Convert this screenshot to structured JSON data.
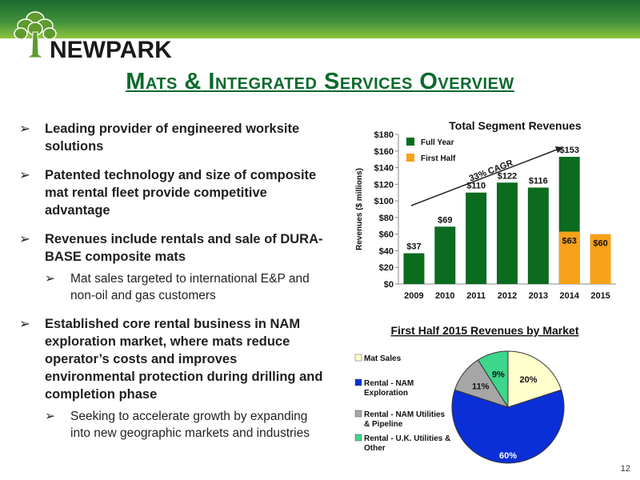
{
  "brand": {
    "name": "NEWPARK"
  },
  "title": "Mats & Integrated Services Overview",
  "bullets": [
    {
      "text": "Leading provider of engineered worksite solutions",
      "sub": []
    },
    {
      "text": "Patented technology and size of composite mat rental fleet provide competitive advantage",
      "sub": []
    },
    {
      "text": "Revenues include rentals and sale of DURA-BASE composite mats",
      "sub": [
        "Mat sales targeted to international E&P and non-oil and gas customers"
      ]
    },
    {
      "text": "Established core rental business in NAM exploration market, where mats reduce operator’s costs and improves environmental protection during drilling and completion phase",
      "sub": [
        "Seeking to accelerate growth by expanding into new geographic markets and industries"
      ]
    }
  ],
  "slide_number": "12",
  "colors": {
    "dark_green": "#0b6b1e",
    "orange": "#f7a11a",
    "title_green": "#0a6a2c"
  },
  "chart_data": [
    {
      "type": "bar",
      "title": "Total Segment Revenues",
      "ylabel": "Revenues ($ millions)",
      "xlabel": "",
      "ylim": [
        0,
        180
      ],
      "yticks": [
        0,
        20,
        40,
        60,
        80,
        100,
        120,
        140,
        160,
        180
      ],
      "ytick_labels": [
        "$0",
        "$20",
        "$40",
        "$60",
        "$80",
        "$100",
        "$120",
        "$140",
        "$160",
        "$180"
      ],
      "categories": [
        "2009",
        "2010",
        "2011",
        "2012",
        "2013",
        "2014",
        "2015"
      ],
      "series": [
        {
          "name": "Full Year",
          "color": "#0b6b1e",
          "values": [
            37,
            69,
            110,
            122,
            116,
            153,
            null
          ],
          "labels": [
            "$37",
            "$69",
            "$110",
            "$122",
            "$116",
            "$153",
            ""
          ]
        },
        {
          "name": "First Half",
          "color": "#f7a11a",
          "values": [
            null,
            null,
            null,
            null,
            null,
            63,
            60
          ],
          "labels": [
            "",
            "",
            "",
            "",
            "",
            "$63",
            "$60"
          ]
        }
      ],
      "legend": "top-left",
      "annotation": "33% CAGR",
      "grid": false
    },
    {
      "type": "pie",
      "title": "First Half 2015 Revenues by Market",
      "legend": "left",
      "slices": [
        {
          "label": "Mat Sales",
          "value": 20,
          "text": "20%",
          "color": "#ffffcc"
        },
        {
          "label": "Rental - NAM Exploration",
          "value": 60,
          "text": "60%",
          "color": "#0a2fd6"
        },
        {
          "label": "Rental - NAM Utilities & Pipeline",
          "value": 11,
          "text": "11%",
          "color": "#a6a6a6"
        },
        {
          "label": "Rental - U.K. Utilities & Other",
          "value": 9,
          "text": "9%",
          "color": "#3dd68a"
        }
      ]
    }
  ]
}
